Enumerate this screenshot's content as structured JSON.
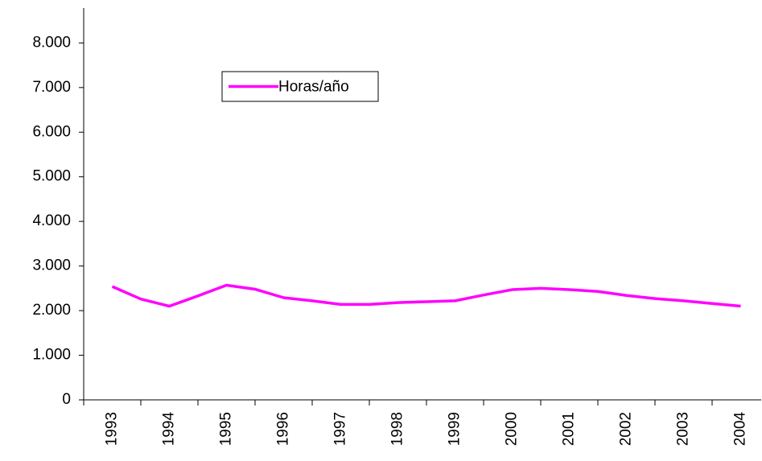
{
  "chart_data": {
    "type": "line",
    "categories": [
      "1993",
      null,
      "1994",
      null,
      "1995",
      null,
      "1996",
      null,
      "1997",
      null,
      "1998",
      null,
      "1999",
      null,
      "2000",
      null,
      "2001",
      null,
      "2002",
      null,
      "2003",
      null,
      "2004"
    ],
    "series": [
      {
        "name": "Horas/año",
        "color": "#ff00ff",
        "values": [
          2540,
          2260,
          2100,
          2330,
          2570,
          2480,
          2290,
          2220,
          2140,
          2140,
          2180,
          2200,
          2220,
          2350,
          2470,
          2500,
          2470,
          2430,
          2340,
          2270,
          2220,
          2160,
          2100
        ]
      }
    ],
    "ylim": [
      0,
      8800
    ],
    "yticks": [
      0,
      {
        "value": 1000,
        "label": "1.000"
      },
      {
        "value": 2000,
        "label": "2.000"
      },
      {
        "value": 3000,
        "label": "3.000"
      },
      {
        "value": 4000,
        "label": "4.000"
      },
      {
        "value": 5000,
        "label": "5.000"
      },
      {
        "value": 6000,
        "label": "6.000"
      },
      {
        "value": 7000,
        "label": "7.000"
      },
      {
        "value": 8000,
        "label": "8.000"
      }
    ],
    "grid": false,
    "legend": "top-left"
  }
}
